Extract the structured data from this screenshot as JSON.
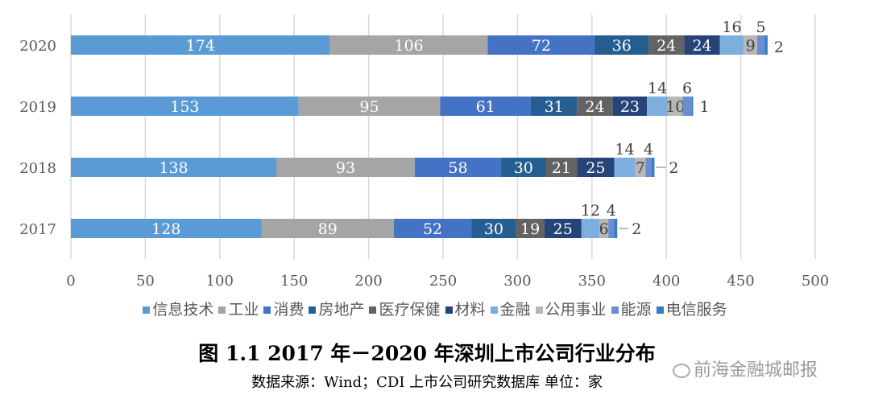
{
  "chart_data": {
    "type": "bar",
    "orientation": "horizontal",
    "stacked": true,
    "categories": [
      "2020",
      "2019",
      "2018",
      "2017"
    ],
    "xlim": [
      0,
      500
    ],
    "xticks": [
      0,
      50,
      100,
      150,
      200,
      250,
      300,
      350,
      400,
      450,
      500
    ],
    "grid": true,
    "legend_placement": "bottom",
    "series": [
      {
        "name": "信息技术",
        "color": "#5B9BD5",
        "values": [
          174,
          153,
          138,
          128
        ]
      },
      {
        "name": "工业",
        "color": "#A5A5A5",
        "values": [
          106,
          95,
          93,
          89
        ]
      },
      {
        "name": "消费",
        "color": "#4472C4",
        "values": [
          72,
          61,
          58,
          52
        ]
      },
      {
        "name": "房地产",
        "color": "#255E91",
        "values": [
          36,
          31,
          30,
          30
        ]
      },
      {
        "name": "医疗保健",
        "color": "#636363",
        "values": [
          24,
          24,
          21,
          19
        ]
      },
      {
        "name": "材料",
        "color": "#264478",
        "values": [
          24,
          23,
          25,
          25
        ]
      },
      {
        "name": "金融",
        "color": "#7CAFDD",
        "values": [
          16,
          14,
          14,
          12
        ],
        "label_pos": "above"
      },
      {
        "name": "公用事业",
        "color": "#B7B7B7",
        "values": [
          9,
          10,
          7,
          6
        ],
        "label_dark": true
      },
      {
        "name": "能源",
        "color": "#698ED0",
        "values": [
          5,
          6,
          4,
          4
        ],
        "label_pos": "above"
      },
      {
        "name": "电信服务",
        "color": "#327DC2",
        "values": [
          2,
          1,
          2,
          2
        ],
        "label_pos": "right"
      }
    ],
    "title": "图 1.1 2017 年－2020 年深圳上市公司行业分布",
    "source": "数据来源：Wind；CDI 上市公司研究数据库     单位：家"
  },
  "watermark": "前海金融城邮报"
}
